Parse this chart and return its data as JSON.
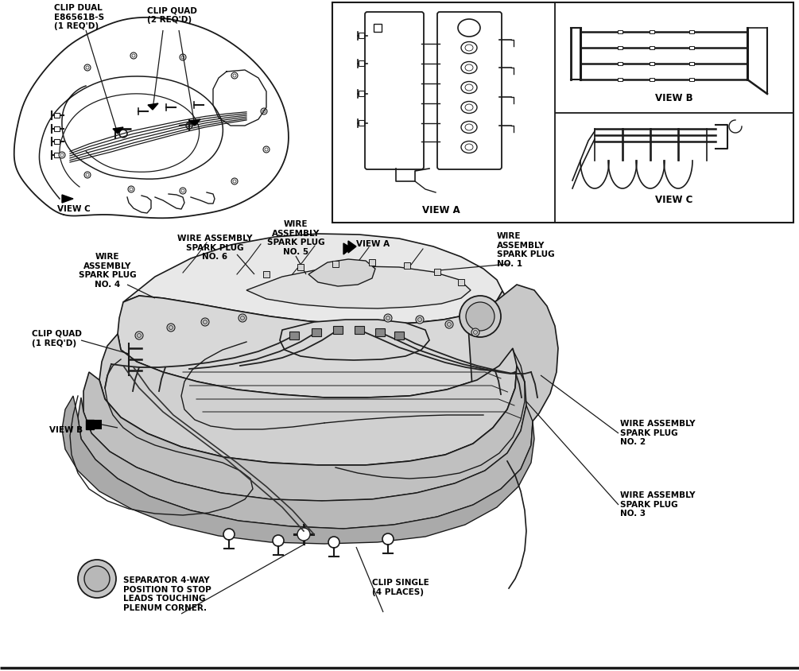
{
  "bg_color": "#ffffff",
  "line_color": "#1a1a1a",
  "fig_width": 10.05,
  "fig_height": 8.44,
  "dpi": 100,
  "labels": {
    "clip_dual": "CLIP DUAL\nE86561B-S\n(1 REQ'D)",
    "clip_quad_top": "CLIP QUAD\n(2 REQ'D)",
    "wire_assy_sp5": "WIRE\nASSEMBLY\nSPARK PLUG\nNO. 5",
    "wire_assy_sp6": "WIRE ASSEMBLY\nSPARK PLUG\nNO. 6",
    "wire_assy_sp4": "WIRE\nASSEMBLY\nSPARK PLUG\nNO. 4",
    "view_a_label": "VIEW A",
    "wire_assy_sp1": "WIRE\nASSEMBLY\nSPARK PLUG\nNO. 1",
    "clip_quad_main": "CLIP QUAD\n(1 REQ'D)",
    "view_b_label": "VIEW B",
    "wire_assy_sp2": "WIRE ASSEMBLY\nSPARK PLUG\nNO. 2",
    "wire_assy_sp3": "WIRE ASSEMBLY\nSPARK PLUG\nNO. 3",
    "separator": "SEPARATOR 4-WAY\nPOSITION TO STOP\nLEADS TOUCHING\nPLENUM CORNER.",
    "clip_single": "CLIP SINGLE\n(4 PLACES)",
    "view_c_top": "VIEW C",
    "view_a_box": "VIEW A",
    "view_b_box": "VIEW B",
    "view_c_box": "VIEW C"
  }
}
